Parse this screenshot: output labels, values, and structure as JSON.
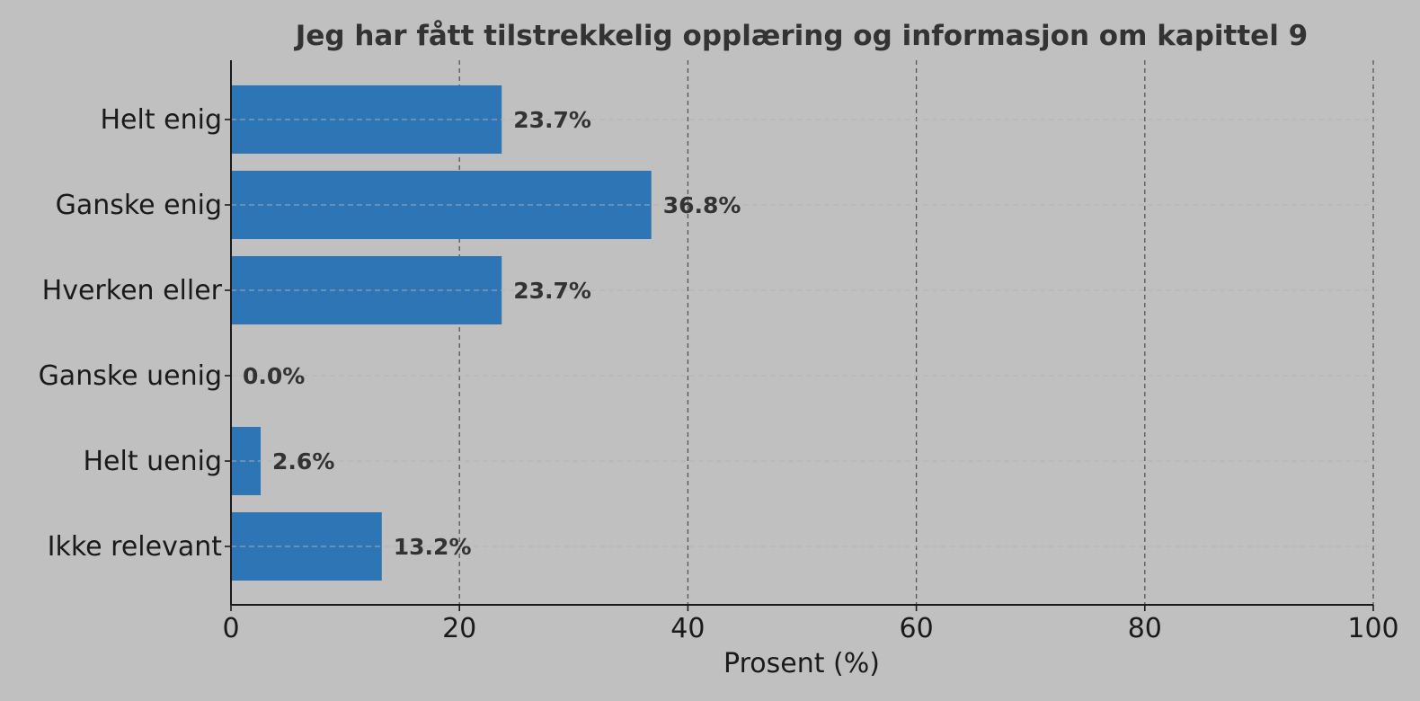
{
  "chart_data": {
    "type": "bar",
    "orientation": "horizontal",
    "title": "Jeg har fått tilstrekkelig opplæring og informasjon om kapittel 9",
    "xlabel": "Prosent (%)",
    "ylabel": "",
    "xlim": [
      0,
      100
    ],
    "xticks": [
      0,
      20,
      40,
      60,
      80,
      100
    ],
    "categories": [
      "Helt enig",
      "Ganske enig",
      "Hverken eller",
      "Ganske uenig",
      "Helt uenig",
      "Ikke relevant"
    ],
    "values": [
      23.7,
      36.8,
      23.7,
      0.0,
      2.6,
      13.2
    ],
    "value_labels": [
      "23.7%",
      "36.8%",
      "23.7%",
      "0.0%",
      "2.6%",
      "13.2%"
    ],
    "bar_color": "#2e75b6",
    "grid": true
  }
}
